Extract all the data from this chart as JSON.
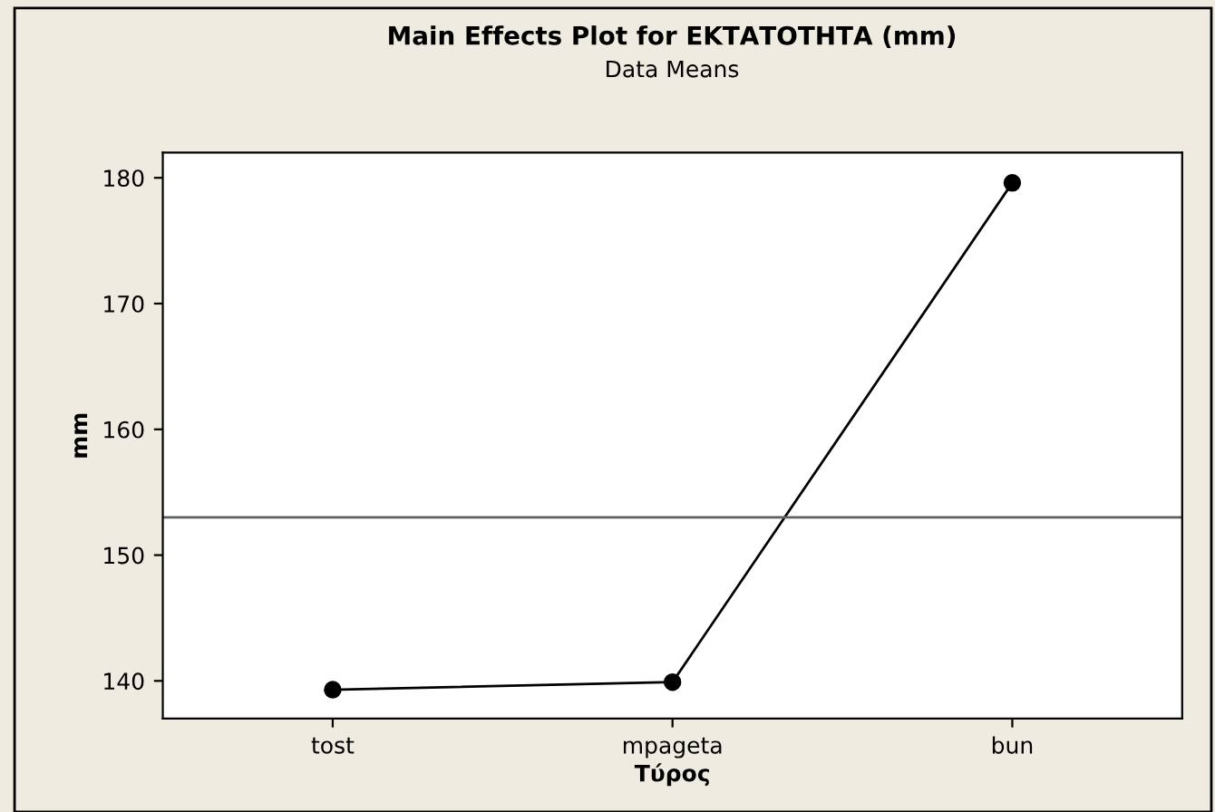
{
  "chart_data": {
    "type": "line",
    "title": "Main Effects Plot for ΕΚΤΑΤΟΤΗΤΑ (mm)",
    "subtitle": "Data Means",
    "xlabel": "Τύρος",
    "ylabel": "mm",
    "categories": [
      "tost",
      "mpageta",
      "bun"
    ],
    "series": [
      {
        "color": "#000000",
        "values": [
          139.3,
          139.9,
          179.6
        ]
      }
    ],
    "marker": "circle",
    "line_style": "solid",
    "grid": false,
    "legend": false,
    "ylim": [
      137,
      182
    ],
    "yticks": [
      140,
      150,
      160,
      170,
      180
    ],
    "ref_lines": [
      {
        "axis": "y",
        "value": 153.0,
        "color": "#606060"
      }
    ]
  }
}
